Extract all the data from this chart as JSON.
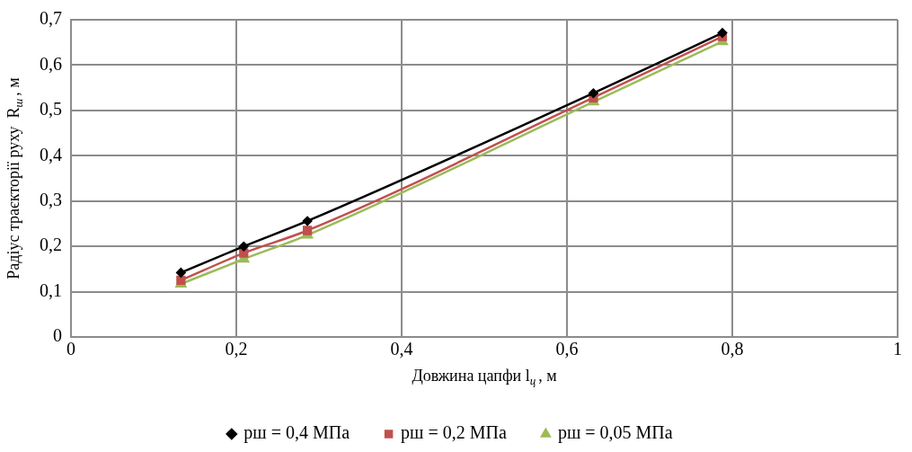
{
  "chart_data": {
    "type": "line",
    "xlabel": "Довжина цапфи l$_{ц}$, м",
    "ylabel": "Радіус траєкторії руху  R$_{ш}$, м",
    "x": [
      0.133,
      0.209,
      0.286,
      0.632,
      0.788
    ],
    "series": [
      {
        "name": "рш = 0,4 МПа",
        "color": "#000000",
        "marker": "diamond",
        "values": [
          0.142,
          0.2,
          0.256,
          0.538,
          0.671
        ]
      },
      {
        "name": "рш = 0,2 МПа",
        "color": "#c0504d",
        "marker": "square",
        "values": [
          0.125,
          0.185,
          0.235,
          0.528,
          0.663
        ]
      },
      {
        "name": "рш = 0,05 МПа",
        "color": "#9bbb59",
        "marker": "triangle",
        "values": [
          0.117,
          0.172,
          0.225,
          0.519,
          0.652
        ]
      }
    ],
    "xlim": [
      0,
      1
    ],
    "xticks": [
      {
        "value": 0,
        "label": "0"
      },
      {
        "value": 0.2,
        "label": "0,2"
      },
      {
        "value": 0.4,
        "label": "0,4"
      },
      {
        "value": 0.6,
        "label": "0,6"
      },
      {
        "value": 0.8,
        "label": "0,8"
      },
      {
        "value": 1,
        "label": "1"
      }
    ],
    "ylim": [
      0,
      0.7
    ],
    "yticks": [
      {
        "value": 0,
        "label": "0"
      },
      {
        "value": 0.1,
        "label": "0,1"
      },
      {
        "value": 0.2,
        "label": "0,2"
      },
      {
        "value": 0.3,
        "label": "0,3"
      },
      {
        "value": 0.4,
        "label": "0,4"
      },
      {
        "value": 0.5,
        "label": "0,5"
      },
      {
        "value": 0.6,
        "label": "0,6"
      },
      {
        "value": 0.7,
        "label": "0,7"
      }
    ],
    "grid": true,
    "legend": "bottom",
    "line_style": "solid"
  }
}
